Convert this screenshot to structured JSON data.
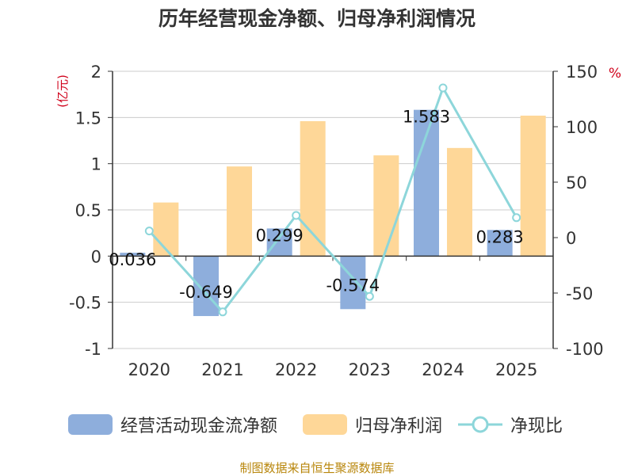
{
  "chart_data": {
    "type": "bar",
    "title": "历年经营现金净额、归母净利润情况",
    "categories": [
      "2020",
      "2021",
      "2022",
      "2023",
      "2024",
      "2025"
    ],
    "ylabel_left": "(亿元)",
    "ylabel_right": "%",
    "ylim_left": [
      -1,
      2
    ],
    "ylim_right": [
      -100,
      150
    ],
    "left_ticks": [
      "-1",
      "-0.5",
      "0",
      "0.5",
      "1",
      "1.5",
      "2"
    ],
    "right_ticks": [
      "-100",
      "-50",
      "0",
      "50",
      "100",
      "150"
    ],
    "grid": true,
    "series": [
      {
        "name": "经营活动现金流净额",
        "type": "bar",
        "axis": "left",
        "color": "#8eaedc",
        "values": [
          0.036,
          -0.649,
          0.299,
          -0.574,
          1.583,
          0.283
        ],
        "labels": [
          "0.036",
          "-0.649",
          "0.299",
          "-0.574",
          "1.583",
          "0.283"
        ]
      },
      {
        "name": "归母净利润",
        "type": "bar",
        "axis": "left",
        "color": "#fed798",
        "values": [
          0.58,
          0.97,
          1.46,
          1.09,
          1.17,
          1.52
        ]
      },
      {
        "name": "净现比",
        "type": "line",
        "axis": "right",
        "color": "#8dd6da",
        "values": [
          6,
          -67,
          20,
          -53,
          135,
          18
        ]
      }
    ]
  },
  "source": "制图数据来自恒生聚源数据库"
}
